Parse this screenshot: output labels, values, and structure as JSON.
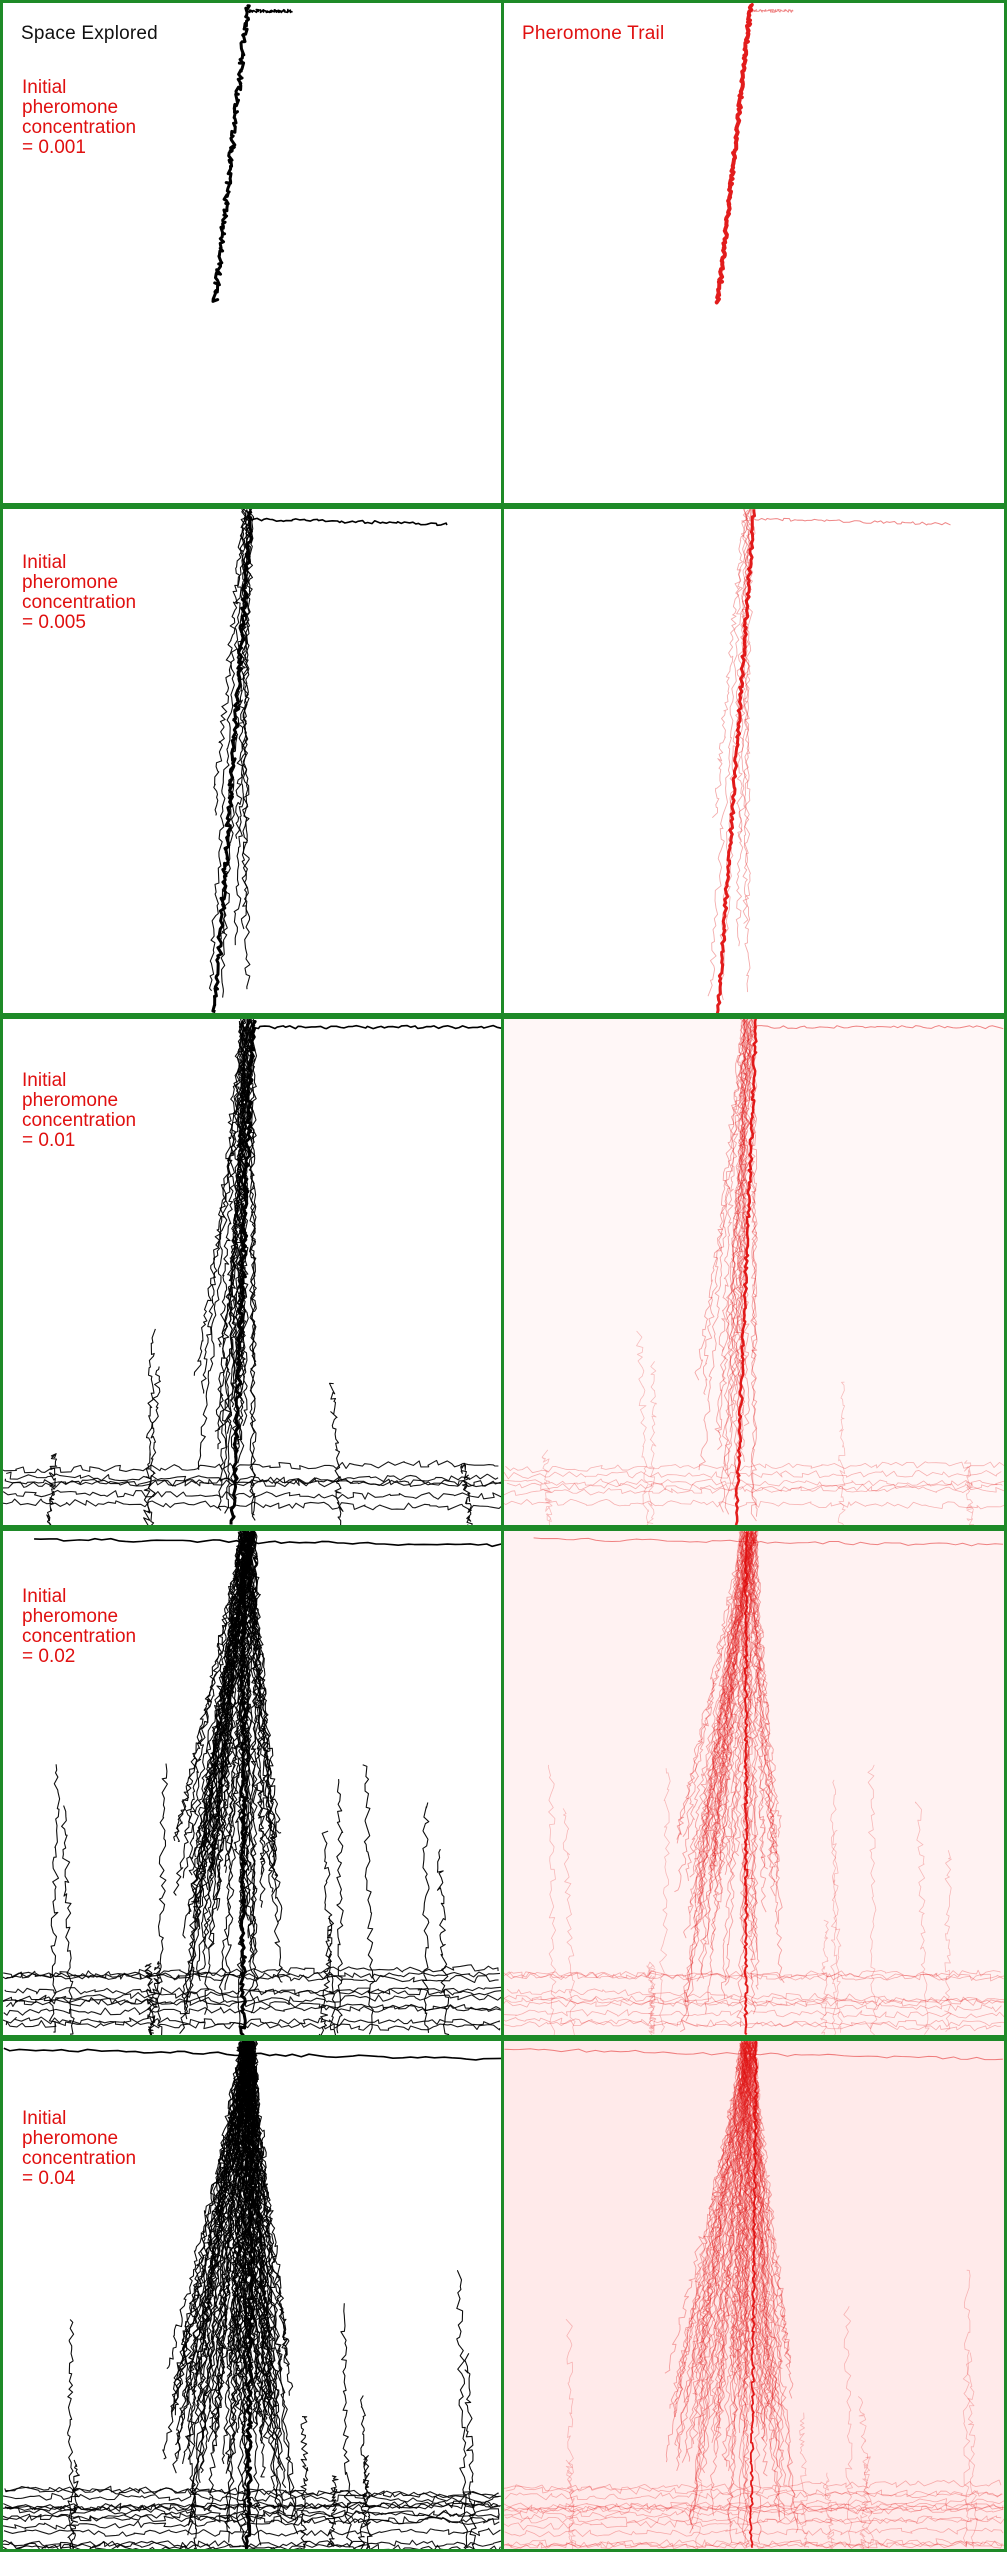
{
  "columns": {
    "left_title": "Space Explored",
    "right_title": "Pheromone Trail"
  },
  "colors": {
    "frame": "#1e8a28",
    "explored": "#000000",
    "trail": "#e01010",
    "label": "#e01010"
  },
  "rows": [
    {
      "label_line1": "Initial",
      "label_line2": "pheromone",
      "label_line3": "concentration",
      "label_line4": "= 0.001",
      "concentration": 0.001
    },
    {
      "label_line1": "Initial",
      "label_line2": "pheromone",
      "label_line3": "concentration",
      "label_line4": "= 0.005",
      "concentration": 0.005
    },
    {
      "label_line1": "Initial",
      "label_line2": "pheromone",
      "label_line3": "concentration",
      "label_line4": "= 0.01",
      "concentration": 0.01
    },
    {
      "label_line1": "Initial",
      "label_line2": "pheromone",
      "label_line3": "concentration",
      "label_line4": "= 0.02",
      "concentration": 0.02
    },
    {
      "label_line1": "Initial",
      "label_line2": "pheromone",
      "label_line3": "concentration",
      "label_line4": "= 0.04",
      "concentration": 0.04
    }
  ]
}
